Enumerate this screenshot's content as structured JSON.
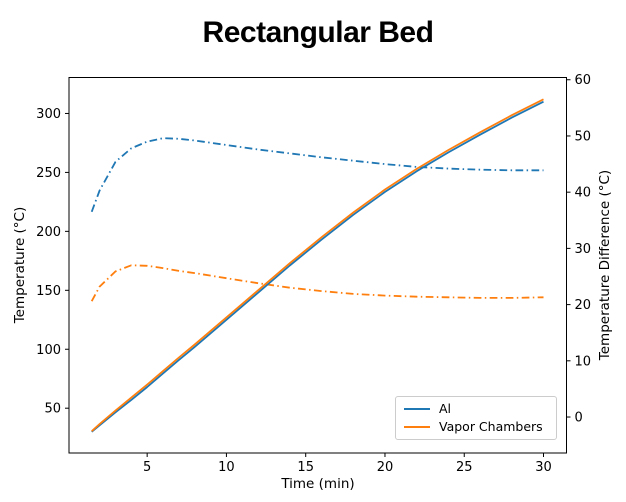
{
  "chart_data": {
    "type": "line",
    "title": "Rectangular Bed",
    "xlabel": "Time (min)",
    "ylabel_left": "Temperature (°C)",
    "ylabel_right": "Temperature Difference (°C)",
    "xlim": [
      0.07,
      31.45
    ],
    "xticks": [
      5,
      10,
      15,
      20,
      25,
      30
    ],
    "ylim_left": [
      12,
      330.5
    ],
    "yticks_left": [
      50,
      100,
      150,
      200,
      250,
      300
    ],
    "ylim_right": [
      -6.4,
      60.4
    ],
    "yticks_right": [
      0,
      10,
      20,
      30,
      40,
      50,
      60
    ],
    "grid": false,
    "colors": {
      "al": "#1f77b4",
      "vapor_chambers": "#ff7f0e"
    },
    "x": [
      1.5,
      2,
      3,
      4,
      5,
      6,
      7,
      8,
      10,
      12,
      14,
      16,
      18,
      20,
      22,
      24,
      26,
      28,
      30
    ],
    "series": [
      {
        "id": "al-temp-difference",
        "axis": "right",
        "style": "dashdot",
        "color": "#1f77b4",
        "values": [
          36.5,
          40.3,
          45.4,
          47.8,
          49.0,
          49.6,
          49.5,
          49.2,
          48.4,
          47.6,
          46.9,
          46.2,
          45.6,
          45.0,
          44.5,
          44.2,
          44.0,
          43.9,
          43.9
        ]
      },
      {
        "id": "vapor-chambers-temp-difference",
        "axis": "right",
        "style": "dashdot",
        "color": "#ff7f0e",
        "values": [
          20.6,
          23.2,
          25.9,
          27.0,
          26.9,
          26.5,
          26.0,
          25.6,
          24.7,
          23.8,
          23.0,
          22.4,
          21.9,
          21.6,
          21.4,
          21.3,
          21.2,
          21.2,
          21.3
        ]
      },
      {
        "id": "al-temperature",
        "axis": "left",
        "style": "solid",
        "color": "#1f77b4",
        "values": [
          30,
          35.5,
          46.5,
          57,
          68,
          79.5,
          91,
          102,
          125,
          148,
          171,
          193,
          214,
          233.5,
          251,
          267,
          282,
          296.5,
          310
        ]
      },
      {
        "id": "vapor-chambers-temperature",
        "axis": "left",
        "style": "solid",
        "color": "#ff7f0e",
        "values": [
          30.5,
          36.5,
          48,
          59,
          70,
          81.5,
          93,
          104,
          127,
          150,
          173,
          195,
          216,
          235.5,
          253,
          269,
          284,
          298.5,
          312
        ]
      }
    ],
    "legend": {
      "position": "lower right",
      "entries": [
        {
          "label": "Al",
          "color": "#1f77b4"
        },
        {
          "label": "Vapor Chambers",
          "color": "#ff7f0e"
        }
      ]
    }
  }
}
